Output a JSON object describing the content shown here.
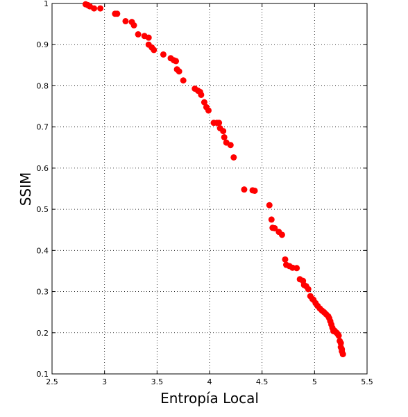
{
  "chart_data": {
    "type": "scatter",
    "xlabel": "Entropía Local",
    "ylabel": "SSIM",
    "xlim": [
      2.5,
      5.5
    ],
    "ylim": [
      0.1,
      1.0
    ],
    "xticks": [
      "2.5",
      "3",
      "3.5",
      "4",
      "4.5",
      "5",
      "5.5"
    ],
    "yticks": [
      "0.1",
      "0.2",
      "0.3",
      "0.4",
      "0.5",
      "0.6",
      "0.7",
      "0.8",
      "0.9",
      "1"
    ],
    "grid": true,
    "marker_color": "#ff0000",
    "series": [
      {
        "x": [
          2.82,
          2.84,
          2.86,
          2.9,
          2.96,
          3.1,
          3.12,
          3.2,
          3.26,
          3.28,
          3.32,
          3.38,
          3.42,
          3.42,
          3.45,
          3.47,
          3.56,
          3.63,
          3.66,
          3.68,
          3.69,
          3.71,
          3.75,
          3.86,
          3.89,
          3.91,
          3.92,
          3.95,
          3.97,
          3.99,
          4.04,
          4.07,
          4.09,
          4.1,
          4.13,
          4.14,
          4.16,
          4.2,
          4.23,
          4.33,
          4.41,
          4.43,
          4.57,
          4.59,
          4.6,
          4.62,
          4.66,
          4.69,
          4.72,
          4.73,
          4.76,
          4.79,
          4.83,
          4.86,
          4.89,
          4.9,
          4.92,
          4.94,
          4.96,
          4.98,
          4.99,
          5.01,
          5.03,
          5.05,
          5.07,
          5.09,
          5.11,
          5.13,
          5.14,
          5.15,
          5.16,
          5.17,
          5.18,
          5.18,
          5.19,
          5.2,
          5.21,
          5.22,
          5.23,
          5.24,
          5.25,
          5.25,
          5.26,
          5.26,
          5.27
        ],
        "y": [
          0.998,
          0.996,
          0.993,
          0.988,
          0.988,
          0.975,
          0.975,
          0.957,
          0.955,
          0.947,
          0.925,
          0.921,
          0.917,
          0.9,
          0.893,
          0.887,
          0.876,
          0.867,
          0.862,
          0.86,
          0.84,
          0.835,
          0.813,
          0.793,
          0.788,
          0.785,
          0.778,
          0.76,
          0.748,
          0.74,
          0.71,
          0.71,
          0.71,
          0.697,
          0.69,
          0.675,
          0.662,
          0.656,
          0.626,
          0.548,
          0.546,
          0.545,
          0.51,
          0.475,
          0.455,
          0.454,
          0.445,
          0.438,
          0.378,
          0.365,
          0.362,
          0.358,
          0.357,
          0.33,
          0.326,
          0.316,
          0.313,
          0.306,
          0.289,
          0.282,
          0.28,
          0.272,
          0.265,
          0.259,
          0.254,
          0.25,
          0.245,
          0.24,
          0.235,
          0.228,
          0.22,
          0.212,
          0.205,
          0.204,
          0.205,
          0.202,
          0.2,
          0.197,
          0.193,
          0.18,
          0.175,
          0.165,
          0.16,
          0.155,
          0.148
        ]
      }
    ]
  }
}
